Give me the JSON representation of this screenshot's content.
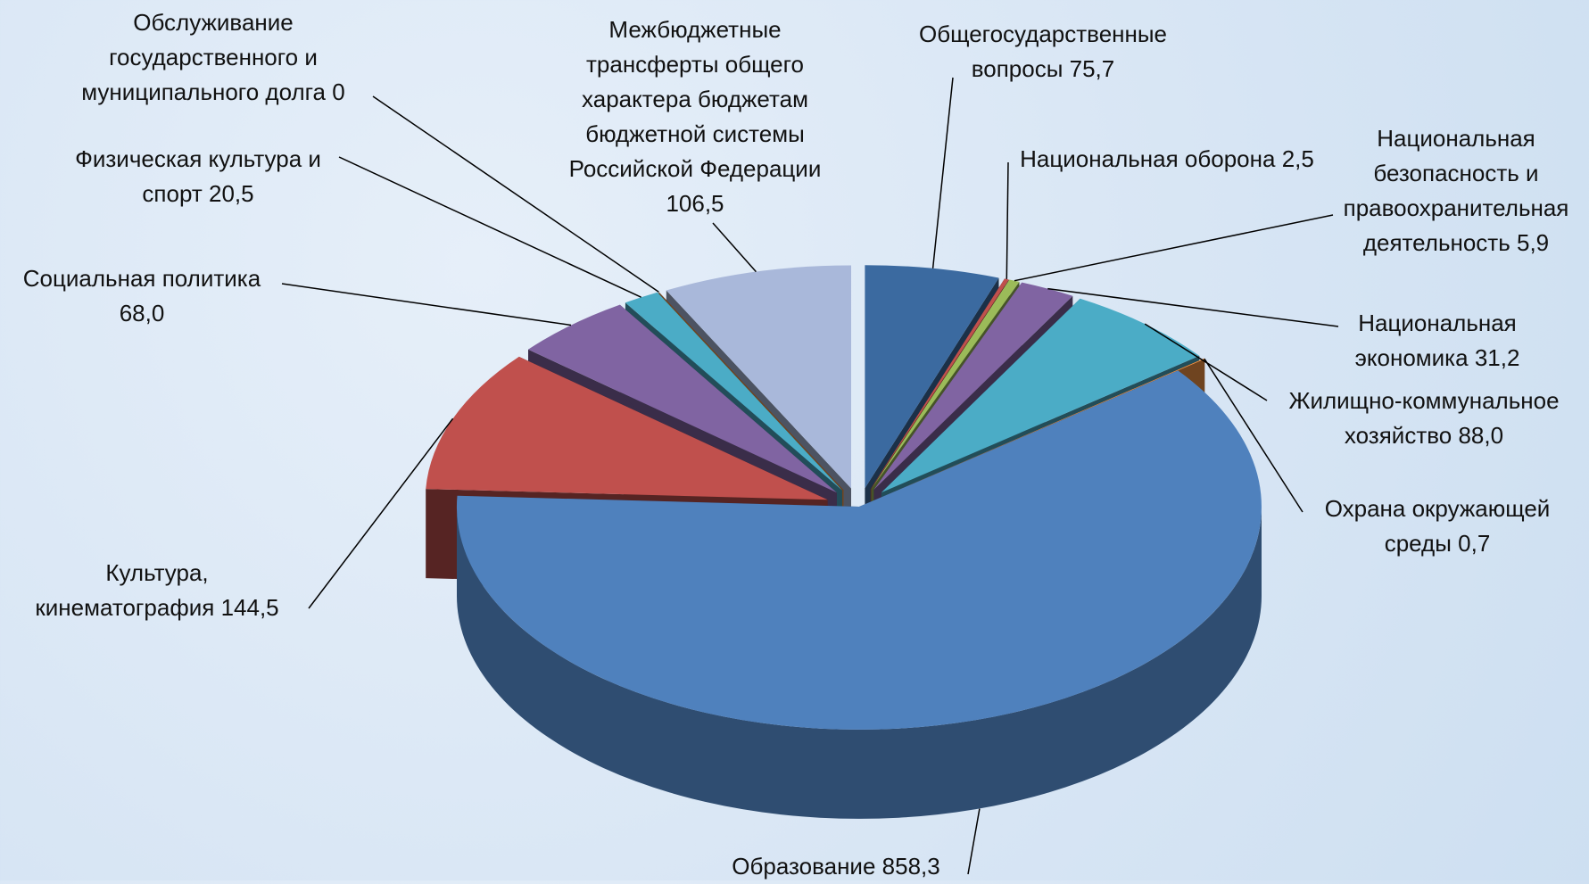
{
  "chart_data": {
    "type": "pie",
    "categories": [
      "Общегосударственные вопросы",
      "Национальная оборона",
      "Национальная безопасность и правоохранительная деятельность",
      "Национальная экономика",
      "Жилищно-коммунальное хозяйство",
      "Охрана окружающей среды",
      "Образование",
      "Культура, кинематография",
      "Социальная политика",
      "Физическая культура и спорт",
      "Обслуживание государственного и муниципального долга",
      "Межбюджетные трансферты общего характера бюджетам бюджетной системы Российской Федерации"
    ],
    "values": [
      75.7,
      2.5,
      5.9,
      31.2,
      88.0,
      0.7,
      858.3,
      144.5,
      68.0,
      20.5,
      0,
      106.5
    ],
    "value_labels": [
      "75,7",
      "2,5",
      "5,9",
      "31,2",
      "88,0",
      "0,7",
      "858,3",
      "144,5",
      "68,0",
      "20,5",
      "0",
      "106,5"
    ],
    "colors": [
      "#3b6aa0",
      "#c0504d",
      "#9bbb59",
      "#8064a2",
      "#4bacc6",
      "#f79646",
      "#4f81bd",
      "#c0504d",
      "#8064a2",
      "#4bacc6",
      "#f79646",
      "#a9b8da"
    ]
  }
}
